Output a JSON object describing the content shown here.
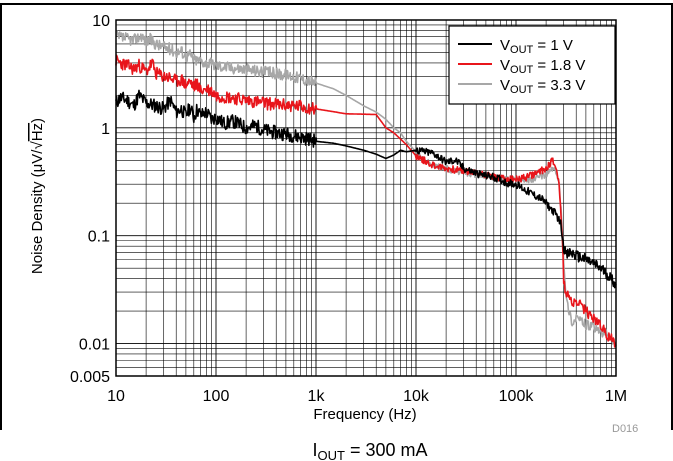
{
  "chart_data": {
    "type": "line",
    "xscale": "log",
    "yscale": "log",
    "xlim": [
      10,
      1000000
    ],
    "ylim": [
      0.005,
      10
    ],
    "grid": true,
    "legend_position": "top-right",
    "xlabel": "Frequency (Hz)",
    "ylabel_parts": {
      "main": "Noise Density (",
      "mu": "μ",
      "unit": "V/",
      "radical": "√",
      "hz": "Hz",
      "close": ")"
    },
    "x_ticks": [
      {
        "value": 10,
        "label": "10"
      },
      {
        "value": 100,
        "label": "100"
      },
      {
        "value": 1000,
        "label": "1k"
      },
      {
        "value": 10000,
        "label": "10k"
      },
      {
        "value": 100000,
        "label": "100k"
      },
      {
        "value": 1000000,
        "label": "1M"
      }
    ],
    "y_ticks": [
      {
        "value": 10,
        "label": "10"
      },
      {
        "value": 1,
        "label": "1"
      },
      {
        "value": 0.1,
        "label": "0.1"
      },
      {
        "value": 0.01,
        "label": "0.01"
      },
      {
        "value": 0.005,
        "label": "0.005"
      }
    ],
    "code": "D016",
    "caption": {
      "prefix": "I",
      "sub": "OUT",
      "suffix": " = 300 mA"
    },
    "series": [
      {
        "name": {
          "prefix": "V",
          "sub": "OUT",
          "suffix": " = 1 V"
        },
        "color": "#000000",
        "points": [
          [
            10,
            1.7
          ],
          [
            11,
            1.9
          ],
          [
            13,
            1.8
          ],
          [
            15,
            1.6
          ],
          [
            17,
            2.0
          ],
          [
            20,
            1.7
          ],
          [
            25,
            1.6
          ],
          [
            30,
            1.5
          ],
          [
            35,
            1.8
          ],
          [
            40,
            1.4
          ],
          [
            45,
            1.5
          ],
          [
            50,
            1.3
          ],
          [
            55,
            1.55
          ],
          [
            60,
            1.25
          ],
          [
            65,
            1.5
          ],
          [
            70,
            1.3
          ],
          [
            80,
            1.4
          ],
          [
            90,
            1.2
          ],
          [
            100,
            1.25
          ],
          [
            120,
            1.1
          ],
          [
            150,
            1.15
          ],
          [
            200,
            1.0
          ],
          [
            250,
            1.05
          ],
          [
            300,
            0.95
          ],
          [
            400,
            0.9
          ],
          [
            500,
            0.88
          ],
          [
            600,
            0.85
          ],
          [
            700,
            0.82
          ],
          [
            800,
            0.8
          ],
          [
            900,
            0.78
          ],
          [
            1000,
            0.75
          ],
          [
            1500,
            0.72
          ],
          [
            2000,
            0.68
          ],
          [
            3000,
            0.62
          ],
          [
            4000,
            0.57
          ],
          [
            5000,
            0.52
          ],
          [
            6000,
            0.56
          ],
          [
            7000,
            0.62
          ],
          [
            8000,
            0.6
          ],
          [
            10000,
            0.62
          ],
          [
            12000,
            0.6
          ],
          [
            15000,
            0.58
          ],
          [
            20000,
            0.48
          ],
          [
            25000,
            0.5
          ],
          [
            30000,
            0.42
          ],
          [
            40000,
            0.38
          ],
          [
            50000,
            0.36
          ],
          [
            60000,
            0.35
          ],
          [
            70000,
            0.33
          ],
          [
            80000,
            0.31
          ],
          [
            100000,
            0.3
          ],
          [
            120000,
            0.27
          ],
          [
            150000,
            0.24
          ],
          [
            180000,
            0.22
          ],
          [
            200000,
            0.2
          ],
          [
            220000,
            0.18
          ],
          [
            250000,
            0.16
          ],
          [
            280000,
            0.13
          ],
          [
            300000,
            0.08
          ],
          [
            320000,
            0.065
          ],
          [
            350000,
            0.07
          ],
          [
            400000,
            0.065
          ],
          [
            500000,
            0.06
          ],
          [
            600000,
            0.055
          ],
          [
            700000,
            0.05
          ],
          [
            800000,
            0.045
          ],
          [
            900000,
            0.04
          ],
          [
            1000000,
            0.035
          ]
        ]
      },
      {
        "name": {
          "prefix": "V",
          "sub": "OUT",
          "suffix": " = 1.8 V"
        },
        "color": "#e8151b",
        "points": [
          [
            10,
            4.2
          ],
          [
            11,
            4.0
          ],
          [
            13,
            3.8
          ],
          [
            15,
            3.5
          ],
          [
            17,
            3.8
          ],
          [
            20,
            3.3
          ],
          [
            23,
            4.0
          ],
          [
            25,
            3.2
          ],
          [
            30,
            3.0
          ],
          [
            35,
            2.9
          ],
          [
            40,
            2.7
          ],
          [
            45,
            2.8
          ],
          [
            50,
            2.5
          ],
          [
            55,
            2.7
          ],
          [
            60,
            2.4
          ],
          [
            65,
            2.6
          ],
          [
            70,
            2.2
          ],
          [
            80,
            2.3
          ],
          [
            90,
            2.2
          ],
          [
            100,
            2.0
          ],
          [
            120,
            1.95
          ],
          [
            150,
            1.9
          ],
          [
            200,
            1.8
          ],
          [
            250,
            1.75
          ],
          [
            300,
            1.7
          ],
          [
            400,
            1.65
          ],
          [
            500,
            1.62
          ],
          [
            600,
            1.6
          ],
          [
            700,
            1.58
          ],
          [
            800,
            1.55
          ],
          [
            900,
            1.52
          ],
          [
            1000,
            1.5
          ],
          [
            2000,
            1.35
          ],
          [
            4000,
            1.33
          ],
          [
            5000,
            1.0
          ],
          [
            6000,
            0.9
          ],
          [
            8000,
            0.7
          ],
          [
            10000,
            0.55
          ],
          [
            12000,
            0.5
          ],
          [
            15000,
            0.45
          ],
          [
            20000,
            0.42
          ],
          [
            30000,
            0.4
          ],
          [
            40000,
            0.38
          ],
          [
            50000,
            0.37
          ],
          [
            70000,
            0.34
          ],
          [
            100000,
            0.33
          ],
          [
            130000,
            0.35
          ],
          [
            160000,
            0.38
          ],
          [
            200000,
            0.42
          ],
          [
            230000,
            0.5
          ],
          [
            250000,
            0.45
          ],
          [
            270000,
            0.3
          ],
          [
            290000,
            0.1
          ],
          [
            300000,
            0.04
          ],
          [
            320000,
            0.025
          ],
          [
            340000,
            0.03
          ],
          [
            370000,
            0.022
          ],
          [
            400000,
            0.025
          ],
          [
            450000,
            0.022
          ],
          [
            500000,
            0.02
          ],
          [
            600000,
            0.017
          ],
          [
            700000,
            0.015
          ],
          [
            800000,
            0.012
          ],
          [
            900000,
            0.011
          ],
          [
            1000000,
            0.01
          ]
        ]
      },
      {
        "name": {
          "prefix": "V",
          "sub": "OUT",
          "suffix": " = 3.3 V"
        },
        "color": "#a7a7a7",
        "points": [
          [
            10,
            7.0
          ],
          [
            12,
            6.8
          ],
          [
            15,
            6.5
          ],
          [
            18,
            7.2
          ],
          [
            20,
            6.3
          ],
          [
            22,
            6.6
          ],
          [
            25,
            6.0
          ],
          [
            30,
            5.6
          ],
          [
            35,
            5.4
          ],
          [
            40,
            5.0
          ],
          [
            45,
            5.2
          ],
          [
            50,
            4.6
          ],
          [
            55,
            4.8
          ],
          [
            60,
            4.3
          ],
          [
            70,
            4.2
          ],
          [
            80,
            4.0
          ],
          [
            90,
            3.9
          ],
          [
            100,
            3.8
          ],
          [
            120,
            3.7
          ],
          [
            150,
            3.6
          ],
          [
            200,
            3.5
          ],
          [
            250,
            3.4
          ],
          [
            300,
            3.3
          ],
          [
            400,
            3.2
          ],
          [
            500,
            3.1
          ],
          [
            600,
            3.0
          ],
          [
            700,
            2.9
          ],
          [
            800,
            2.8
          ],
          [
            900,
            2.7
          ],
          [
            1000,
            2.6
          ],
          [
            1500,
            2.3
          ],
          [
            2000,
            2.0
          ],
          [
            3000,
            1.6
          ],
          [
            4000,
            1.4
          ],
          [
            5000,
            1.2
          ],
          [
            6000,
            1.0
          ],
          [
            7000,
            0.9
          ],
          [
            8000,
            0.75
          ],
          [
            10000,
            0.6
          ],
          [
            12000,
            0.5
          ],
          [
            15000,
            0.45
          ],
          [
            20000,
            0.42
          ],
          [
            30000,
            0.38
          ],
          [
            40000,
            0.37
          ],
          [
            50000,
            0.36
          ],
          [
            70000,
            0.34
          ],
          [
            100000,
            0.33
          ],
          [
            130000,
            0.33
          ],
          [
            160000,
            0.34
          ],
          [
            200000,
            0.37
          ],
          [
            230000,
            0.42
          ],
          [
            250000,
            0.4
          ],
          [
            270000,
            0.3
          ],
          [
            290000,
            0.12
          ],
          [
            300000,
            0.06
          ],
          [
            320000,
            0.025
          ],
          [
            340000,
            0.02
          ],
          [
            370000,
            0.015
          ],
          [
            400000,
            0.018
          ],
          [
            450000,
            0.016
          ],
          [
            500000,
            0.015
          ],
          [
            600000,
            0.014
          ],
          [
            700000,
            0.013
          ],
          [
            800000,
            0.012
          ],
          [
            900000,
            0.011
          ],
          [
            1000000,
            0.0095
          ]
        ]
      }
    ]
  }
}
